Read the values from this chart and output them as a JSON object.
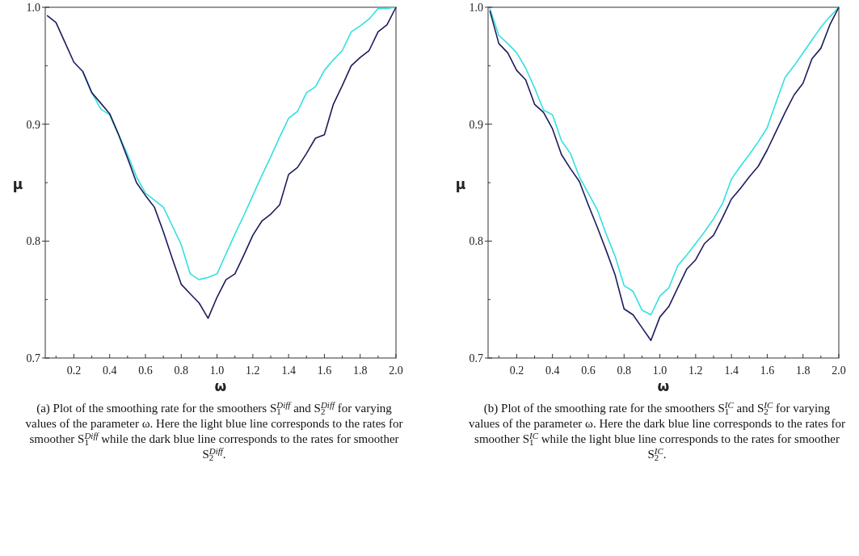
{
  "chart_data": [
    {
      "type": "line",
      "xlabel": "ω",
      "ylabel": "μ",
      "xlim": [
        0.04,
        2.0
      ],
      "ylim": [
        0.7,
        1.0
      ],
      "xticks": [
        {
          "value": 0.1,
          "label": null
        },
        0.2,
        {
          "value": 0.3,
          "label": null
        },
        0.4,
        {
          "value": 0.5,
          "label": null
        },
        0.6,
        {
          "value": 0.7,
          "label": null
        },
        0.8,
        {
          "value": 0.9,
          "label": null
        },
        {
          "value": 1.0,
          "label": "1.0"
        },
        {
          "value": 1.1,
          "label": null
        },
        1.2,
        {
          "value": 1.3,
          "label": null
        },
        1.4,
        {
          "value": 1.5,
          "label": null
        },
        1.6,
        {
          "value": 1.7,
          "label": null
        },
        1.8,
        {
          "value": 1.9,
          "label": null
        },
        {
          "value": 2.0,
          "label": "2.0"
        }
      ],
      "yticks": [
        0.7,
        {
          "value": 0.75,
          "label": null
        },
        0.8,
        {
          "value": 0.85,
          "label": null
        },
        0.9,
        {
          "value": 0.95,
          "label": null
        },
        {
          "value": 1.0,
          "label": "1.0"
        }
      ],
      "grid": false,
      "marker": "none",
      "line_style": "solid",
      "x": [
        0.05,
        0.1,
        0.15,
        0.2,
        0.25,
        0.3,
        0.35,
        0.4,
        0.45,
        0.5,
        0.55,
        0.6,
        0.65,
        0.7,
        0.75,
        0.8,
        0.85,
        0.9,
        0.95,
        1.0,
        1.05,
        1.1,
        1.15,
        1.2,
        1.25,
        1.3,
        1.35,
        1.4,
        1.45,
        1.5,
        1.55,
        1.6,
        1.65,
        1.7,
        1.75,
        1.8,
        1.85,
        1.9,
        1.95,
        2.0
      ],
      "series": [
        {
          "color": "#33e0e0",
          "values": [
            null,
            null,
            null,
            null,
            0.945,
            0.927,
            0.913,
            0.908,
            0.891,
            0.874,
            0.855,
            0.841,
            0.835,
            0.829,
            0.813,
            0.797,
            0.772,
            0.767,
            0.769,
            0.772,
            0.789,
            0.806,
            0.822,
            0.839,
            0.856,
            0.872,
            0.889,
            0.905,
            0.911,
            0.927,
            0.932,
            0.946,
            0.955,
            0.963,
            0.979,
            0.984,
            0.99,
            0.999,
            0.999,
            1.0
          ]
        },
        {
          "color": "#1c1c5c",
          "values": [
            0.993,
            0.987,
            0.97,
            0.953,
            0.945,
            0.927,
            0.918,
            0.909,
            0.891,
            0.871,
            0.85,
            0.839,
            0.829,
            0.808,
            0.785,
            0.763,
            0.755,
            0.747,
            0.734,
            0.752,
            0.767,
            0.772,
            0.788,
            0.805,
            0.817,
            0.823,
            0.831,
            0.857,
            0.863,
            0.875,
            0.888,
            0.891,
            0.917,
            0.933,
            0.95,
            0.957,
            0.963,
            0.979,
            0.985,
            1.0
          ]
        }
      ],
      "annotations": [
        "(a) Plot of the smoothing rate for the smoothers S$_{1}$$^{Diff}$ and S$_{2}$$^{Diff}$ for varying values of the parameter ω. Here the light blue line corresponds to the rates for smoother S$_{1}$$^{Diff}$ while the dark blue line corresponds to the rates for smoother S$_{2}$$^{Diff}$."
      ]
    },
    {
      "type": "line",
      "xlabel": "ω",
      "ylabel": "μ",
      "xlim": [
        0.04,
        2.0
      ],
      "ylim": [
        0.7,
        1.0
      ],
      "xticks": [
        {
          "value": 0.1,
          "label": null
        },
        0.2,
        {
          "value": 0.3,
          "label": null
        },
        0.4,
        {
          "value": 0.5,
          "label": null
        },
        0.6,
        {
          "value": 0.7,
          "label": null
        },
        0.8,
        {
          "value": 0.9,
          "label": null
        },
        {
          "value": 1.0,
          "label": "1.0"
        },
        {
          "value": 1.1,
          "label": null
        },
        1.2,
        {
          "value": 1.3,
          "label": null
        },
        1.4,
        {
          "value": 1.5,
          "label": null
        },
        1.6,
        {
          "value": 1.7,
          "label": null
        },
        1.8,
        {
          "value": 1.9,
          "label": null
        },
        {
          "value": 2.0,
          "label": "2.0"
        }
      ],
      "yticks": [
        0.7,
        {
          "value": 0.75,
          "label": null
        },
        0.8,
        {
          "value": 0.85,
          "label": null
        },
        0.9,
        {
          "value": 0.95,
          "label": null
        },
        {
          "value": 1.0,
          "label": "1.0"
        }
      ],
      "grid": false,
      "marker": "none",
      "line_style": "solid",
      "x": [
        0.05,
        0.1,
        0.15,
        0.2,
        0.25,
        0.3,
        0.35,
        0.4,
        0.45,
        0.5,
        0.55,
        0.6,
        0.65,
        0.7,
        0.75,
        0.8,
        0.85,
        0.9,
        0.95,
        1.0,
        1.05,
        1.1,
        1.15,
        1.2,
        1.25,
        1.3,
        1.35,
        1.4,
        1.45,
        1.5,
        1.55,
        1.6,
        1.65,
        1.7,
        1.75,
        1.8,
        1.85,
        1.9,
        1.95,
        2.0
      ],
      "series": [
        {
          "color": "#33e0e0",
          "values": [
            0.999,
            0.976,
            0.969,
            0.961,
            0.948,
            0.931,
            0.912,
            0.908,
            0.886,
            0.875,
            0.855,
            0.841,
            0.827,
            0.806,
            0.787,
            0.762,
            0.757,
            0.741,
            0.737,
            0.753,
            0.76,
            0.779,
            0.788,
            0.798,
            0.808,
            0.819,
            0.832,
            0.853,
            0.864,
            0.874,
            0.885,
            0.897,
            0.919,
            0.94,
            0.95,
            0.961,
            0.972,
            0.983,
            0.992,
            1.0
          ]
        },
        {
          "color": "#1c1c5c",
          "values": [
            0.997,
            0.969,
            0.961,
            0.946,
            0.938,
            0.917,
            0.91,
            0.896,
            0.874,
            0.862,
            0.851,
            0.831,
            0.812,
            0.792,
            0.771,
            0.742,
            0.737,
            0.726,
            0.715,
            0.735,
            0.744,
            0.76,
            0.776,
            0.784,
            0.798,
            0.805,
            0.82,
            0.836,
            0.845,
            0.855,
            0.864,
            0.878,
            0.894,
            0.91,
            0.925,
            0.935,
            0.956,
            0.965,
            0.985,
            1.0
          ]
        }
      ],
      "annotations": [
        "(b) Plot of the smoothing rate for the smoothers S$_{1}$$^{IC}$ and S$_{2}$$^{IC}$ for varying values of the parameter ω. Here the dark blue line corresponds to the rates for smoother S$_{1}$$^{IC}$ while the light blue line corresponds to the rates for smoother S$_{2}$$^{IC}$."
      ]
    }
  ]
}
